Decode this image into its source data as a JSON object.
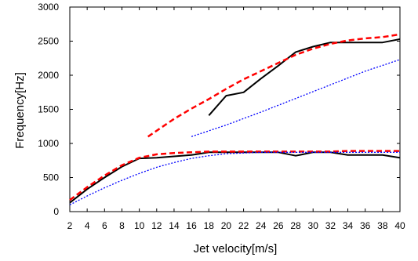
{
  "chart_data": {
    "type": "line",
    "title": "",
    "xlabel": "Jet velocity[m/s]",
    "ylabel": "Frequency[Hz]",
    "xlim": [
      2,
      40
    ],
    "ylim": [
      0,
      3000
    ],
    "x_ticks": [
      2,
      4,
      6,
      8,
      10,
      12,
      14,
      16,
      18,
      20,
      22,
      24,
      26,
      28,
      30,
      32,
      34,
      36,
      38,
      40
    ],
    "y_ticks": [
      0,
      500,
      1000,
      1500,
      2000,
      2500,
      3000
    ],
    "grid": false,
    "legend": "none",
    "colors": {
      "black": "#000000",
      "red": "#ff0000",
      "blue": "#0000ff"
    },
    "series": [
      {
        "style": "solid",
        "color": "black",
        "x": [
          2,
          4,
          6,
          8,
          10,
          12,
          14,
          16,
          18,
          20,
          22,
          24,
          26,
          28,
          30,
          32,
          34,
          36,
          38,
          40
        ],
        "y": [
          130,
          330,
          500,
          660,
          780,
          790,
          810,
          830,
          870,
          870,
          870,
          870,
          870,
          820,
          870,
          870,
          830,
          830,
          830,
          790
        ]
      },
      {
        "style": "solid",
        "color": "black",
        "x": [
          18,
          20,
          22,
          24,
          26,
          28,
          30,
          32,
          34,
          36,
          38,
          40
        ],
        "y": [
          1410,
          1700,
          1750,
          1950,
          2140,
          2340,
          2420,
          2480,
          2480,
          2480,
          2480,
          2530
        ]
      },
      {
        "style": "dashed",
        "color": "red",
        "x": [
          2,
          4,
          6,
          8,
          10,
          12,
          14,
          16,
          18,
          20,
          22,
          24,
          26,
          28,
          30,
          32,
          34,
          36,
          38,
          40
        ],
        "y": [
          170,
          360,
          530,
          680,
          790,
          840,
          860,
          870,
          880,
          880,
          880,
          880,
          880,
          880,
          880,
          880,
          890,
          890,
          890,
          890
        ]
      },
      {
        "style": "dashed",
        "color": "red",
        "x": [
          11,
          14,
          16,
          18,
          20,
          22,
          24,
          26,
          28,
          30,
          32,
          34,
          36,
          38,
          40
        ],
        "y": [
          1100,
          1360,
          1510,
          1650,
          1800,
          1940,
          2060,
          2180,
          2300,
          2390,
          2460,
          2510,
          2540,
          2560,
          2600
        ]
      },
      {
        "style": "dotted",
        "color": "blue",
        "x": [
          2,
          4,
          6,
          8,
          10,
          12,
          14,
          16,
          18,
          20,
          22,
          24,
          26,
          28,
          30,
          32,
          34,
          36,
          38,
          40
        ],
        "y": [
          100,
          230,
          350,
          460,
          560,
          650,
          720,
          780,
          820,
          850,
          860,
          870,
          870,
          870,
          870,
          870,
          870,
          870,
          870,
          870
        ]
      },
      {
        "style": "dotted",
        "color": "blue",
        "x": [
          16,
          20,
          24,
          28,
          32,
          36,
          40
        ],
        "y": [
          1100,
          1270,
          1460,
          1660,
          1860,
          2060,
          2230
        ]
      }
    ]
  }
}
